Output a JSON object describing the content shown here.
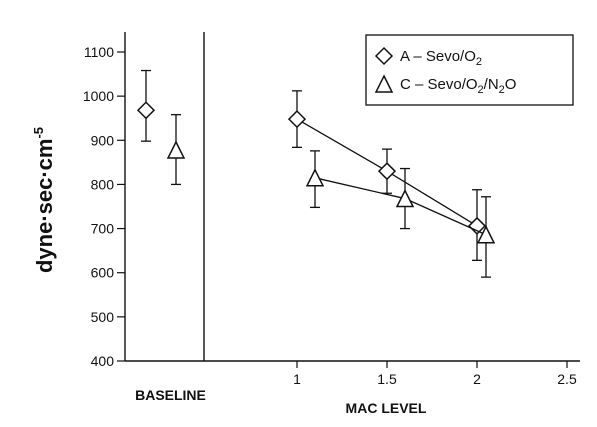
{
  "chart_data": {
    "type": "scatter",
    "ylabel": "dyne·sec·cm",
    "ylabel_superscript": "-5",
    "xlabel": "MAC LEVEL",
    "baseline_label": "BASELINE",
    "ylim": [
      400,
      1100
    ],
    "yticks": [
      400,
      500,
      600,
      700,
      800,
      900,
      1000,
      1100
    ],
    "xlim": [
      0.5,
      2.5
    ],
    "xticks": [
      "1",
      "1.5",
      "2",
      "2.5"
    ],
    "legend_position": "top-right",
    "series": [
      {
        "name": "A – Sevo/O2",
        "legend_parts": [
          {
            "t": "A – Sevo/O"
          },
          {
            "t": "2",
            "sub": true
          }
        ],
        "marker": "diamond",
        "baseline": {
          "y": 968,
          "err_low": 898,
          "err_high": 1058
        },
        "points": [
          {
            "x": 1.0,
            "y": 948,
            "err_low": 884,
            "err_high": 1012
          },
          {
            "x": 1.5,
            "y": 830,
            "err_low": 780,
            "err_high": 880
          },
          {
            "x": 2.0,
            "y": 706,
            "err_low": 628,
            "err_high": 788
          }
        ]
      },
      {
        "name": "C – Sevo/O2/N2O",
        "legend_parts": [
          {
            "t": "C – Sevo/O"
          },
          {
            "t": "2",
            "sub": true
          },
          {
            "t": "/N"
          },
          {
            "t": "2",
            "sub": true
          },
          {
            "t": "O"
          }
        ],
        "marker": "triangle",
        "baseline": {
          "y": 878,
          "err_low": 800,
          "err_high": 958
        },
        "points": [
          {
            "x": 1.1,
            "y": 815,
            "err_low": 748,
            "err_high": 876
          },
          {
            "x": 1.6,
            "y": 768,
            "err_low": 700,
            "err_high": 836
          },
          {
            "x": 2.05,
            "y": 686,
            "err_low": 590,
            "err_high": 772
          }
        ]
      }
    ]
  }
}
